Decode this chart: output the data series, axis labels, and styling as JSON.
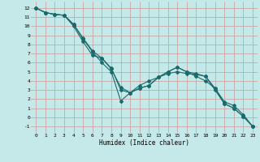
{
  "xlabel": "Humidex (Indice chaleur)",
  "bg_color": "#c5e8e8",
  "grid_color": "#cc9999",
  "line_color": "#1a6b6b",
  "xlim": [
    -0.5,
    23.5
  ],
  "ylim": [
    -1.7,
    12.7
  ],
  "xticks": [
    0,
    1,
    2,
    3,
    4,
    5,
    6,
    7,
    8,
    9,
    10,
    11,
    12,
    13,
    14,
    15,
    16,
    17,
    18,
    19,
    20,
    21,
    22,
    23
  ],
  "yticks": [
    -1,
    0,
    1,
    2,
    3,
    4,
    5,
    6,
    7,
    8,
    9,
    10,
    11,
    12
  ],
  "series": [
    {
      "x": [
        0,
        1,
        2,
        3,
        4,
        5,
        6,
        7,
        8,
        9,
        10,
        11,
        12,
        13,
        14,
        15,
        16,
        17,
        18,
        19,
        20,
        21,
        22,
        23
      ],
      "y": [
        12,
        11.5,
        11.3,
        11.2,
        10.2,
        8.7,
        7.3,
        6.5,
        5.3,
        3.3,
        2.7,
        3.2,
        3.5,
        4.4,
        5.0,
        5.5,
        5.0,
        4.8,
        4.5,
        3.2,
        1.7,
        1.3,
        0.3,
        -1.0
      ]
    },
    {
      "x": [
        0,
        1,
        2,
        3,
        4,
        5,
        6,
        7,
        8,
        9,
        10,
        11,
        12,
        13,
        14,
        15,
        16,
        17,
        18,
        19,
        20,
        21,
        22,
        23
      ],
      "y": [
        12,
        11.5,
        11.3,
        11.2,
        10.2,
        8.6,
        7.2,
        6.0,
        5.0,
        1.8,
        2.7,
        3.5,
        4.0,
        4.4,
        4.8,
        5.0,
        4.8,
        4.7,
        4.5,
        3.0,
        1.5,
        1.0,
        0.1,
        -1.0
      ]
    },
    {
      "x": [
        0,
        1,
        2,
        3,
        4,
        5,
        6,
        7,
        8,
        9,
        10,
        11,
        12,
        13,
        14,
        15,
        16,
        17,
        18,
        19,
        20,
        21,
        22,
        23
      ],
      "y": [
        12,
        11.5,
        11.3,
        11.2,
        10.0,
        8.3,
        6.8,
        6.5,
        5.4,
        3.0,
        2.7,
        3.2,
        3.5,
        4.4,
        5.0,
        5.5,
        5.0,
        4.5,
        4.0,
        3.2,
        1.5,
        1.0,
        0.1,
        -1.0
      ]
    }
  ]
}
